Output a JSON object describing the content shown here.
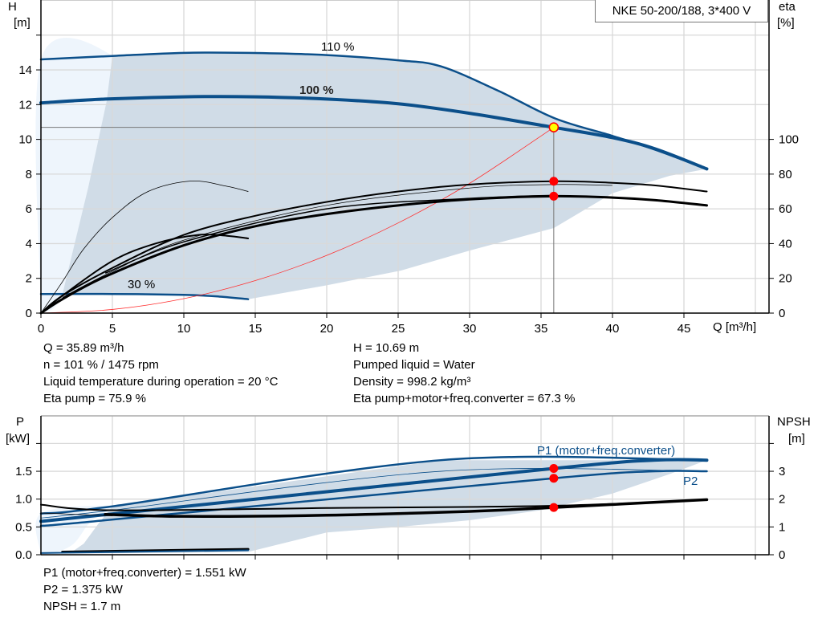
{
  "colors": {
    "curve_blue": "#0b4f8a",
    "area": "#d0dce7",
    "area_light": "#eef5fc",
    "system_curve": "#ff3030",
    "duty_point": "#ff0000",
    "operating_point_fill": "#ffff00",
    "grid": "#d9d9d9"
  },
  "title": "NKE 50-200/188, 3*400 V",
  "readouts_top": {
    "left": [
      "Q = 35.89 m³/h",
      "n = 101 % / 1475 rpm",
      "Liquid temperature during operation = 20 °C",
      "Eta pump = 75.9 %"
    ],
    "right": [
      "H = 10.69 m",
      "Pumped liquid = Water",
      "Density = 998.2 kg/m³",
      "Eta pump+motor+freq.converter = 67.3 %"
    ]
  },
  "readouts_bottom": [
    "P1 (motor+freq.converter) = 1.551 kW",
    "P2 = 1.375 kW",
    "NPSH = 1.7 m"
  ],
  "chart_data": [
    {
      "type": "line",
      "title": "NKE 50-200/188, 3*400 V",
      "xlabel": "Q [m³/h]",
      "ylabel": "H\n[m]",
      "ylabel_left": {
        "name": "H",
        "unit": "[m]"
      },
      "ylabel_right": {
        "name": "eta",
        "unit": "[%]"
      },
      "xlim": [
        0,
        51
      ],
      "ylim": [
        0,
        18
      ],
      "y2lim": [
        0,
        180
      ],
      "xticks": [
        "0",
        "5",
        "10",
        "15",
        "20",
        "25",
        "30",
        "35",
        "40",
        "45"
      ],
      "yticks": [
        "0",
        "2",
        "4",
        "6",
        "8",
        "10",
        "12",
        "14"
      ],
      "y2ticks": [
        "0",
        "20",
        "40",
        "60",
        "80",
        "100"
      ],
      "grid": true,
      "curve_labels": [
        "110 %",
        "100 %",
        "30 %"
      ],
      "operating_point": {
        "Q": 35.89,
        "H": 10.69
      },
      "series": [
        {
          "role": "H 110 %",
          "axis": "left",
          "x": [
            0,
            5,
            10,
            15,
            20,
            25,
            28,
            32,
            36,
            40,
            43,
            46.6
          ],
          "y": [
            14.6,
            14.8,
            14.98,
            14.97,
            14.85,
            14.55,
            14.2,
            12.8,
            11.2,
            10.2,
            9.4,
            8.3
          ]
        },
        {
          "role": "H 100 %",
          "axis": "left",
          "x": [
            0,
            4.5,
            10,
            15,
            20,
            25,
            30,
            35.89,
            40,
            43,
            46.6
          ],
          "y": [
            12.1,
            12.32,
            12.45,
            12.45,
            12.32,
            12.05,
            11.5,
            10.69,
            10.1,
            9.45,
            8.3
          ]
        },
        {
          "role": "H 30 %",
          "axis": "left",
          "x": [
            0,
            5,
            10,
            12.5,
            14.5
          ],
          "y": [
            1.1,
            1.1,
            1.05,
            0.95,
            0.8
          ]
        },
        {
          "role": "system curve",
          "axis": "left",
          "x": [
            0,
            5,
            10,
            15,
            20,
            25,
            30,
            35.89
          ],
          "y": [
            0,
            0.21,
            0.83,
            1.87,
            3.32,
            5.19,
            7.47,
            10.69
          ]
        },
        {
          "role": "eta pump",
          "axis": "right",
          "x": [
            0,
            1.5,
            5,
            10,
            15,
            20,
            25,
            30,
            35.89,
            40,
            43,
            46.6
          ],
          "y": [
            0,
            10,
            26,
            45,
            56,
            64,
            70,
            74,
            75.9,
            75,
            73.5,
            70
          ]
        },
        {
          "role": "eta total",
          "axis": "right",
          "x": [
            0,
            1.5,
            4.5,
            10,
            15,
            20,
            25,
            30,
            35.89,
            40,
            43,
            46.6
          ],
          "y": [
            0,
            8,
            21,
            39,
            50,
            57,
            62,
            65.5,
            67.3,
            66.5,
            65,
            62
          ]
        },
        {
          "role": "eta pump 30 %",
          "axis": "right",
          "x": [
            0,
            1.5,
            3,
            5,
            7.5,
            10.5,
            13,
            14.5
          ],
          "y": [
            0,
            18,
            37,
            55,
            70,
            76,
            73,
            70
          ]
        },
        {
          "role": "eta total 30 %",
          "axis": "right",
          "x": [
            0,
            1.5,
            5,
            8,
            11,
            13,
            14.5
          ],
          "y": [
            0,
            10,
            30,
            40,
            45,
            44.5,
            43
          ]
        }
      ],
      "duty_points": [
        {
          "Q": 35.89,
          "eta": 75.9
        },
        {
          "Q": 35.89,
          "eta": 67.3
        }
      ]
    },
    {
      "type": "line",
      "ylabel_left": {
        "name": "P",
        "unit": "[kW]"
      },
      "ylabel_right": {
        "name": "NPSH",
        "unit": "[m]"
      },
      "xlim": [
        0,
        51
      ],
      "ylim": [
        0,
        2.5
      ],
      "y2lim": [
        0,
        5
      ],
      "yticks": [
        "0.0",
        "0.5",
        "1.0",
        "1.5"
      ],
      "y2ticks": [
        "0",
        "1",
        "2",
        "3"
      ],
      "grid": true,
      "curve_labels": [
        "P1 (motor+freq.converter)",
        "P2"
      ],
      "series": [
        {
          "role": "P1 110 %",
          "axis": "left",
          "x": [
            0,
            5,
            28,
            46.6
          ],
          "y": [
            0.74,
            0.87,
            1.7,
            1.7
          ]
        },
        {
          "role": "P2 110 %",
          "axis": "left",
          "x": [
            0,
            5,
            28,
            46.6
          ],
          "y": [
            0.66,
            0.8,
            1.5,
            1.5
          ]
        },
        {
          "role": "P1 100 %",
          "axis": "left",
          "x": [
            0,
            4.5,
            35.89,
            43,
            46.6
          ],
          "y": [
            0.6,
            0.72,
            1.551,
            1.7,
            1.7
          ]
        },
        {
          "role": "P2 100 %",
          "axis": "left",
          "x": [
            0,
            4.5,
            35.89,
            43,
            46.6
          ],
          "y": [
            0.52,
            0.62,
            1.375,
            1.5,
            1.5
          ]
        },
        {
          "role": "P1 30 %",
          "axis": "left",
          "x": [
            1.5,
            14.5
          ],
          "y": [
            0.05,
            0.1
          ]
        },
        {
          "role": "P2 30 %",
          "axis": "left",
          "x": [
            0,
            14.5
          ],
          "y": [
            0.03,
            0.08
          ]
        },
        {
          "role": "NPSH 100 %",
          "axis": "right",
          "x": [
            4.5,
            10,
            20,
            30,
            35.89,
            46.6
          ],
          "y": [
            1.45,
            1.38,
            1.42,
            1.56,
            1.7,
            1.98
          ]
        },
        {
          "role": "NPSH 110 %",
          "axis": "right",
          "x": [
            0,
            5,
            20,
            35.89,
            46.6
          ],
          "y": [
            1.8,
            1.6,
            1.68,
            1.76,
            1.98
          ]
        },
        {
          "role": "NPSH low",
          "axis": "right",
          "x": [
            0,
            5
          ],
          "y": [
            1.5,
            1.4
          ]
        }
      ],
      "duty_points": [
        {
          "Q": 35.89,
          "P": 1.551
        },
        {
          "Q": 35.89,
          "P": 1.375
        },
        {
          "Q": 35.89,
          "NPSH": 1.7
        }
      ]
    }
  ]
}
